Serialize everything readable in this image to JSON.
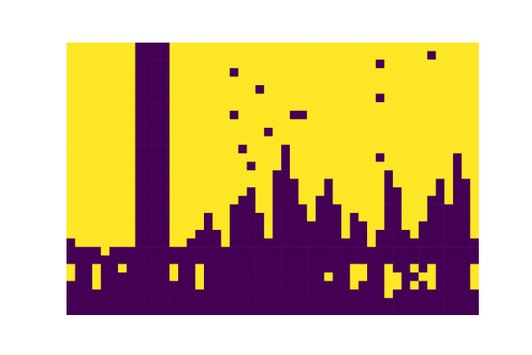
{
  "chart_data": {
    "type": "heatmap",
    "tick_labels": false,
    "color_range": [
      0,
      1
    ],
    "cells": [
      [
        1,
        1,
        1,
        1,
        1,
        1,
        1,
        1,
        0,
        0,
        0,
        0,
        1,
        1,
        1,
        1,
        1,
        1,
        1,
        1,
        1,
        1,
        1,
        1,
        1,
        1,
        1,
        1,
        1,
        1,
        1,
        1,
        1,
        1,
        1,
        1,
        1,
        1,
        1,
        1,
        1,
        1,
        1,
        1,
        1,
        1,
        1,
        1
      ],
      [
        1,
        1,
        1,
        1,
        1,
        1,
        1,
        1,
        0,
        0,
        0,
        0,
        1,
        1,
        1,
        1,
        1,
        1,
        1,
        1,
        1,
        1,
        1,
        1,
        1,
        1,
        1,
        1,
        1,
        1,
        1,
        1,
        1,
        1,
        1,
        1,
        1,
        1,
        1,
        1,
        1,
        1,
        0,
        1,
        1,
        1,
        1,
        1
      ],
      [
        1,
        1,
        1,
        1,
        1,
        1,
        1,
        1,
        0,
        0,
        0,
        0,
        1,
        1,
        1,
        1,
        1,
        1,
        1,
        1,
        1,
        1,
        1,
        1,
        1,
        1,
        1,
        1,
        1,
        1,
        1,
        1,
        1,
        1,
        1,
        1,
        0,
        1,
        1,
        1,
        1,
        1,
        1,
        1,
        1,
        1,
        1,
        1
      ],
      [
        1,
        1,
        1,
        1,
        1,
        1,
        1,
        1,
        0,
        0,
        0,
        0,
        1,
        1,
        1,
        1,
        1,
        1,
        1,
        0,
        1,
        1,
        1,
        1,
        1,
        1,
        1,
        1,
        1,
        1,
        1,
        1,
        1,
        1,
        1,
        1,
        1,
        1,
        1,
        1,
        1,
        1,
        1,
        1,
        1,
        1,
        1,
        1
      ],
      [
        1,
        1,
        1,
        1,
        1,
        1,
        1,
        1,
        0,
        0,
        0,
        0,
        1,
        1,
        1,
        1,
        1,
        1,
        1,
        1,
        1,
        1,
        1,
        1,
        1,
        1,
        1,
        1,
        1,
        1,
        1,
        1,
        1,
        1,
        1,
        1,
        1,
        1,
        1,
        1,
        1,
        1,
        1,
        1,
        1,
        1,
        1,
        1
      ],
      [
        1,
        1,
        1,
        1,
        1,
        1,
        1,
        1,
        0,
        0,
        0,
        0,
        1,
        1,
        1,
        1,
        1,
        1,
        1,
        1,
        1,
        1,
        0,
        1,
        1,
        1,
        1,
        1,
        1,
        1,
        1,
        1,
        1,
        1,
        1,
        1,
        1,
        1,
        1,
        1,
        1,
        1,
        1,
        1,
        1,
        1,
        1,
        1
      ],
      [
        1,
        1,
        1,
        1,
        1,
        1,
        1,
        1,
        0,
        0,
        0,
        0,
        1,
        1,
        1,
        1,
        1,
        1,
        1,
        1,
        1,
        1,
        1,
        1,
        1,
        1,
        1,
        1,
        1,
        1,
        1,
        1,
        1,
        1,
        1,
        1,
        0,
        1,
        1,
        1,
        1,
        1,
        1,
        1,
        1,
        1,
        1,
        1
      ],
      [
        1,
        1,
        1,
        1,
        1,
        1,
        1,
        1,
        0,
        0,
        0,
        0,
        1,
        1,
        1,
        1,
        1,
        1,
        1,
        1,
        1,
        1,
        1,
        1,
        1,
        1,
        1,
        1,
        1,
        1,
        1,
        1,
        1,
        1,
        1,
        1,
        1,
        1,
        1,
        1,
        1,
        1,
        1,
        1,
        1,
        1,
        1,
        1
      ],
      [
        1,
        1,
        1,
        1,
        1,
        1,
        1,
        1,
        0,
        0,
        0,
        0,
        1,
        1,
        1,
        1,
        1,
        1,
        1,
        0,
        1,
        1,
        1,
        1,
        1,
        1,
        0,
        0,
        1,
        1,
        1,
        1,
        1,
        1,
        1,
        1,
        1,
        1,
        1,
        1,
        1,
        1,
        1,
        1,
        1,
        1,
        1,
        1
      ],
      [
        1,
        1,
        1,
        1,
        1,
        1,
        1,
        1,
        0,
        0,
        0,
        0,
        1,
        1,
        1,
        1,
        1,
        1,
        1,
        1,
        1,
        1,
        1,
        1,
        1,
        1,
        1,
        1,
        1,
        1,
        1,
        1,
        1,
        1,
        1,
        1,
        1,
        1,
        1,
        1,
        1,
        1,
        1,
        1,
        1,
        1,
        1,
        1
      ],
      [
        1,
        1,
        1,
        1,
        1,
        1,
        1,
        1,
        0,
        0,
        0,
        0,
        1,
        1,
        1,
        1,
        1,
        1,
        1,
        1,
        1,
        1,
        1,
        0,
        1,
        1,
        1,
        1,
        1,
        1,
        1,
        1,
        1,
        1,
        1,
        1,
        1,
        1,
        1,
        1,
        1,
        1,
        1,
        1,
        1,
        1,
        1,
        1
      ],
      [
        1,
        1,
        1,
        1,
        1,
        1,
        1,
        1,
        0,
        0,
        0,
        0,
        1,
        1,
        1,
        1,
        1,
        1,
        1,
        1,
        1,
        1,
        1,
        1,
        1,
        1,
        1,
        1,
        1,
        1,
        1,
        1,
        1,
        1,
        1,
        1,
        1,
        1,
        1,
        1,
        1,
        1,
        1,
        1,
        1,
        1,
        1,
        1
      ],
      [
        1,
        1,
        1,
        1,
        1,
        1,
        1,
        1,
        0,
        0,
        0,
        0,
        1,
        1,
        1,
        1,
        1,
        1,
        1,
        1,
        0,
        1,
        1,
        1,
        1,
        0,
        1,
        1,
        1,
        1,
        1,
        1,
        1,
        1,
        1,
        1,
        1,
        1,
        1,
        1,
        1,
        1,
        1,
        1,
        1,
        1,
        1,
        1
      ],
      [
        1,
        1,
        1,
        1,
        1,
        1,
        1,
        1,
        0,
        0,
        0,
        0,
        1,
        1,
        1,
        1,
        1,
        1,
        1,
        1,
        1,
        1,
        1,
        1,
        1,
        0,
        1,
        1,
        1,
        1,
        1,
        1,
        1,
        1,
        1,
        1,
        0,
        1,
        1,
        1,
        1,
        1,
        1,
        1,
        1,
        0,
        1,
        1
      ],
      [
        1,
        1,
        1,
        1,
        1,
        1,
        1,
        1,
        0,
        0,
        0,
        0,
        1,
        1,
        1,
        1,
        1,
        1,
        1,
        1,
        1,
        0,
        1,
        1,
        1,
        0,
        1,
        1,
        1,
        1,
        1,
        1,
        1,
        1,
        1,
        1,
        1,
        1,
        1,
        1,
        1,
        1,
        1,
        1,
        1,
        0,
        1,
        1
      ],
      [
        1,
        1,
        1,
        1,
        1,
        1,
        1,
        1,
        0,
        0,
        0,
        0,
        1,
        1,
        1,
        1,
        1,
        1,
        1,
        1,
        1,
        1,
        1,
        1,
        0,
        0,
        1,
        1,
        1,
        1,
        1,
        1,
        1,
        1,
        1,
        1,
        1,
        0,
        1,
        1,
        1,
        1,
        1,
        1,
        1,
        0,
        1,
        1
      ],
      [
        1,
        1,
        1,
        1,
        1,
        1,
        1,
        1,
        0,
        0,
        0,
        0,
        1,
        1,
        1,
        1,
        1,
        1,
        1,
        1,
        1,
        1,
        1,
        1,
        0,
        0,
        0,
        1,
        1,
        1,
        0,
        1,
        1,
        1,
        1,
        1,
        1,
        0,
        1,
        1,
        1,
        1,
        1,
        0,
        1,
        0,
        0,
        1
      ],
      [
        1,
        1,
        1,
        1,
        1,
        1,
        1,
        1,
        0,
        0,
        0,
        0,
        1,
        1,
        1,
        1,
        1,
        1,
        1,
        1,
        1,
        0,
        1,
        1,
        0,
        0,
        0,
        1,
        1,
        1,
        0,
        1,
        1,
        1,
        1,
        1,
        1,
        0,
        0,
        1,
        1,
        1,
        1,
        0,
        1,
        0,
        0,
        1
      ],
      [
        1,
        1,
        1,
        1,
        1,
        1,
        1,
        1,
        0,
        0,
        0,
        0,
        1,
        1,
        1,
        1,
        1,
        1,
        1,
        1,
        0,
        0,
        1,
        1,
        0,
        0,
        0,
        1,
        1,
        0,
        0,
        1,
        1,
        1,
        1,
        1,
        1,
        0,
        0,
        1,
        1,
        1,
        0,
        0,
        1,
        0,
        0,
        1
      ],
      [
        1,
        1,
        1,
        1,
        1,
        1,
        1,
        1,
        0,
        0,
        0,
        0,
        1,
        1,
        1,
        1,
        1,
        1,
        1,
        0,
        0,
        0,
        1,
        1,
        0,
        0,
        0,
        0,
        1,
        0,
        0,
        0,
        1,
        1,
        1,
        1,
        1,
        0,
        0,
        1,
        1,
        1,
        0,
        0,
        0,
        0,
        0,
        1
      ],
      [
        1,
        1,
        1,
        1,
        1,
        1,
        1,
        1,
        0,
        0,
        0,
        0,
        1,
        1,
        1,
        1,
        0,
        1,
        1,
        0,
        0,
        0,
        0,
        1,
        0,
        0,
        0,
        0,
        1,
        0,
        0,
        0,
        1,
        0,
        1,
        1,
        1,
        0,
        0,
        1,
        1,
        1,
        0,
        0,
        0,
        0,
        0,
        1
      ],
      [
        1,
        1,
        1,
        1,
        1,
        1,
        1,
        1,
        0,
        0,
        0,
        0,
        1,
        1,
        1,
        1,
        0,
        1,
        1,
        0,
        0,
        0,
        0,
        1,
        0,
        0,
        0,
        0,
        0,
        0,
        0,
        0,
        1,
        0,
        0,
        1,
        1,
        0,
        0,
        1,
        1,
        0,
        0,
        0,
        0,
        0,
        0,
        1
      ],
      [
        1,
        1,
        1,
        1,
        1,
        1,
        1,
        1,
        0,
        0,
        0,
        0,
        1,
        1,
        1,
        0,
        0,
        0,
        1,
        0,
        0,
        0,
        0,
        1,
        0,
        0,
        0,
        0,
        0,
        0,
        0,
        0,
        1,
        0,
        0,
        1,
        0,
        0,
        0,
        0,
        1,
        0,
        0,
        0,
        0,
        0,
        0,
        1
      ],
      [
        0,
        1,
        1,
        1,
        1,
        1,
        1,
        1,
        0,
        0,
        0,
        0,
        1,
        1,
        0,
        0,
        0,
        0,
        1,
        0,
        0,
        0,
        0,
        0,
        0,
        0,
        0,
        0,
        0,
        0,
        0,
        0,
        0,
        0,
        0,
        1,
        0,
        0,
        0,
        0,
        0,
        0,
        0,
        0,
        0,
        0,
        0,
        0
      ],
      [
        0,
        0,
        0,
        0,
        1,
        0,
        0,
        0,
        0,
        0,
        0,
        0,
        0,
        0,
        0,
        0,
        0,
        0,
        0,
        0,
        0,
        0,
        0,
        0,
        0,
        0,
        0,
        0,
        0,
        0,
        0,
        0,
        0,
        0,
        0,
        0,
        0,
        0,
        0,
        0,
        0,
        0,
        0,
        0,
        0,
        0,
        0,
        0
      ],
      [
        0,
        0,
        0,
        0,
        0,
        0,
        0,
        0,
        0,
        0,
        0,
        0,
        0,
        0,
        0,
        0,
        0,
        0,
        0,
        0,
        0,
        0,
        0,
        0,
        0,
        0,
        0,
        0,
        0,
        0,
        0,
        0,
        0,
        0,
        0,
        0,
        0,
        0,
        0,
        0,
        0,
        0,
        0,
        0,
        0,
        0,
        0,
        0
      ],
      [
        1,
        0,
        0,
        1,
        0,
        0,
        1,
        0,
        0,
        0,
        0,
        0,
        1,
        0,
        0,
        1,
        0,
        0,
        0,
        0,
        0,
        0,
        0,
        0,
        0,
        0,
        0,
        0,
        0,
        0,
        0,
        0,
        0,
        1,
        1,
        0,
        0,
        1,
        0,
        0,
        1,
        0,
        1,
        0,
        0,
        0,
        0,
        1
      ],
      [
        1,
        0,
        0,
        1,
        0,
        0,
        0,
        0,
        0,
        0,
        0,
        0,
        1,
        0,
        0,
        1,
        0,
        0,
        0,
        0,
        0,
        0,
        0,
        0,
        0,
        0,
        0,
        0,
        0,
        0,
        1,
        0,
        0,
        1,
        1,
        0,
        0,
        1,
        1,
        0,
        0,
        1,
        1,
        0,
        0,
        0,
        0,
        1
      ],
      [
        0,
        0,
        0,
        1,
        0,
        0,
        0,
        0,
        0,
        0,
        0,
        0,
        0,
        0,
        0,
        1,
        0,
        0,
        0,
        0,
        0,
        0,
        0,
        0,
        0,
        0,
        0,
        0,
        0,
        0,
        0,
        0,
        0,
        1,
        0,
        0,
        0,
        1,
        1,
        0,
        1,
        0,
        1,
        0,
        0,
        0,
        0,
        1
      ],
      [
        0,
        0,
        0,
        0,
        0,
        0,
        0,
        0,
        0,
        0,
        0,
        0,
        0,
        0,
        0,
        0,
        0,
        0,
        0,
        0,
        0,
        0,
        0,
        0,
        0,
        0,
        0,
        0,
        0,
        0,
        0,
        0,
        0,
        0,
        0,
        0,
        0,
        1,
        0,
        0,
        0,
        0,
        0,
        0,
        0,
        0,
        0,
        0
      ],
      [
        0,
        0,
        0,
        0,
        0,
        0,
        0,
        0,
        0,
        0,
        0,
        0,
        0,
        0,
        0,
        0,
        0,
        0,
        0,
        0,
        0,
        0,
        0,
        0,
        0,
        0,
        0,
        0,
        0,
        0,
        0,
        0,
        0,
        0,
        0,
        0,
        0,
        0,
        0,
        0,
        0,
        0,
        0,
        0,
        0,
        0,
        0,
        0
      ],
      [
        0,
        0,
        0,
        0,
        0,
        0,
        0,
        0,
        0,
        0,
        0,
        0,
        0,
        0,
        0,
        0,
        0,
        0,
        0,
        0,
        0,
        0,
        0,
        0,
        0,
        0,
        0,
        0,
        0,
        0,
        0,
        0,
        0,
        0,
        0,
        0,
        0,
        0,
        0,
        0,
        0,
        0,
        0,
        0,
        0,
        0,
        0,
        0
      ]
    ]
  }
}
